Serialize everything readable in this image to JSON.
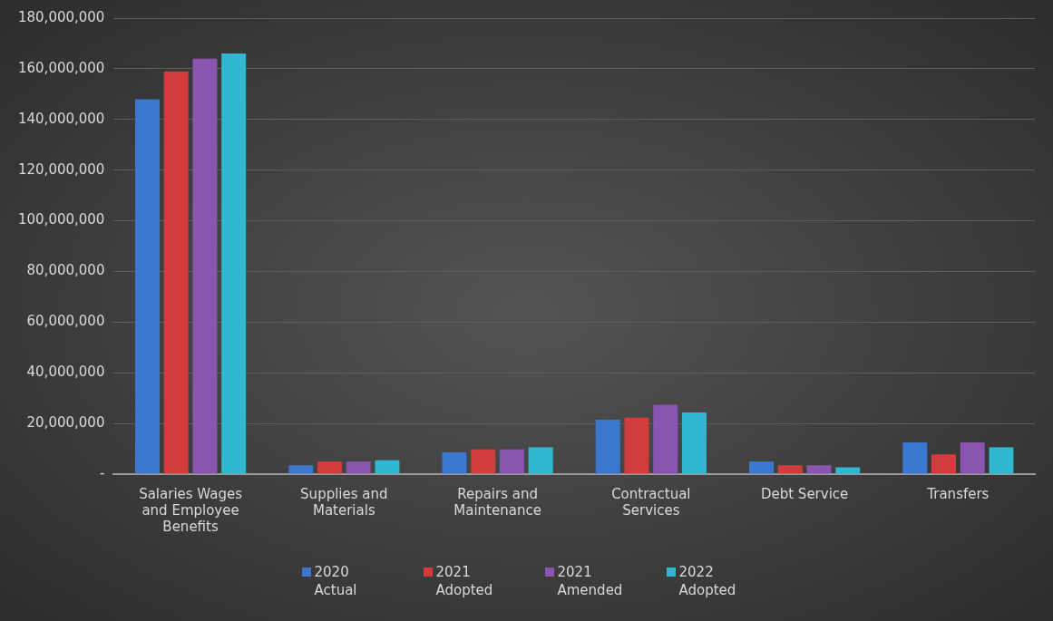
{
  "chart_data": {
    "type": "bar",
    "categories": [
      "Salaries Wages and Employee Benefits",
      "Supplies and Materials",
      "Repairs and Maintenance",
      "Contractual Services",
      "Debt Service",
      "Transfers"
    ],
    "series": [
      {
        "name": "2020 Actual",
        "color": "#3a78d0",
        "values": [
          148000000,
          3500000,
          8600000,
          21500000,
          5000000,
          12500000
        ]
      },
      {
        "name": "2021 Adopted",
        "color": "#d23c3c",
        "values": [
          159000000,
          5000000,
          9800000,
          22300000,
          3500000,
          7800000
        ]
      },
      {
        "name": "2021 Amended",
        "color": "#8a55b0",
        "values": [
          164000000,
          5000000,
          9800000,
          27400000,
          3500000,
          12500000
        ]
      },
      {
        "name": "2022 Adopted",
        "color": "#2fb8d0",
        "values": [
          166000000,
          5500000,
          10600000,
          24300000,
          2700000,
          10600000
        ]
      }
    ],
    "ylim": [
      0,
      180000000
    ],
    "yticks": [
      {
        "value": 0,
        "label": "-"
      },
      {
        "value": 20000000,
        "label": "20,000,000"
      },
      {
        "value": 40000000,
        "label": "40,000,000"
      },
      {
        "value": 60000000,
        "label": "60,000,000"
      },
      {
        "value": 80000000,
        "label": "80,000,000"
      },
      {
        "value": 100000000,
        "label": "100,000,000"
      },
      {
        "value": 120000000,
        "label": "120,000,000"
      },
      {
        "value": 140000000,
        "label": "140,000,000"
      },
      {
        "value": 160000000,
        "label": "160,000,000"
      },
      {
        "value": 180000000,
        "label": "180,000,000"
      }
    ],
    "grid": "y",
    "legend": "bottom"
  }
}
